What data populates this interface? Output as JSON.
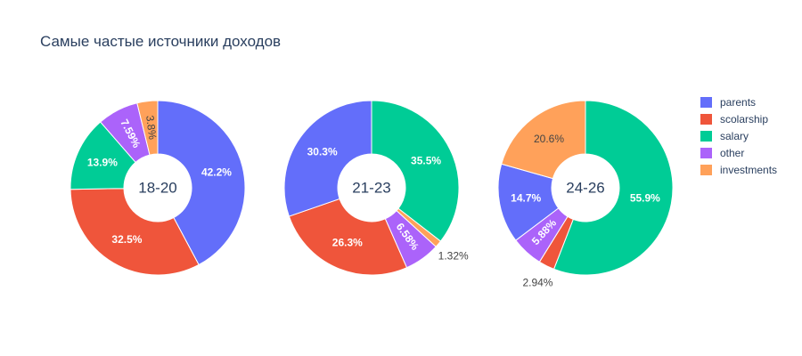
{
  "chart_data": {
    "type": "pie",
    "title": "Самые частые источники доходов",
    "legend": {
      "placement": "right",
      "entries": [
        {
          "name": "parents",
          "color": "#636efa"
        },
        {
          "name": "scolarship",
          "color": "#ef553b"
        },
        {
          "name": "salary",
          "color": "#00cc96"
        },
        {
          "name": "other",
          "color": "#ab63fa"
        },
        {
          "name": "investments",
          "color": "#ffa15a"
        }
      ]
    },
    "charts": [
      {
        "center_label": "18-20",
        "slices": [
          {
            "category": "parents",
            "value": 42.2,
            "label": "42.2%"
          },
          {
            "category": "scolarship",
            "value": 32.5,
            "label": "32.5%"
          },
          {
            "category": "salary",
            "value": 13.9,
            "label": "13.9%"
          },
          {
            "category": "other",
            "value": 7.59,
            "label": "7.59%"
          },
          {
            "category": "investments",
            "value": 3.8,
            "label": "3.8%"
          }
        ]
      },
      {
        "center_label": "21-23",
        "slices": [
          {
            "category": "salary",
            "value": 35.5,
            "label": "35.5%"
          },
          {
            "category": "investments",
            "value": 1.32,
            "label": "1.32%"
          },
          {
            "category": "other",
            "value": 6.58,
            "label": "6.58%"
          },
          {
            "category": "scolarship",
            "value": 26.3,
            "label": "26.3%"
          },
          {
            "category": "parents",
            "value": 30.3,
            "label": "30.3%"
          }
        ]
      },
      {
        "center_label": "24-26",
        "slices": [
          {
            "category": "salary",
            "value": 55.9,
            "label": "55.9%"
          },
          {
            "category": "scolarship",
            "value": 2.94,
            "label": "2.94%"
          },
          {
            "category": "other",
            "value": 5.88,
            "label": "5.88%"
          },
          {
            "category": "parents",
            "value": 14.7,
            "label": "14.7%"
          },
          {
            "category": "investments",
            "value": 20.6,
            "label": "20.6%"
          }
        ]
      }
    ]
  }
}
